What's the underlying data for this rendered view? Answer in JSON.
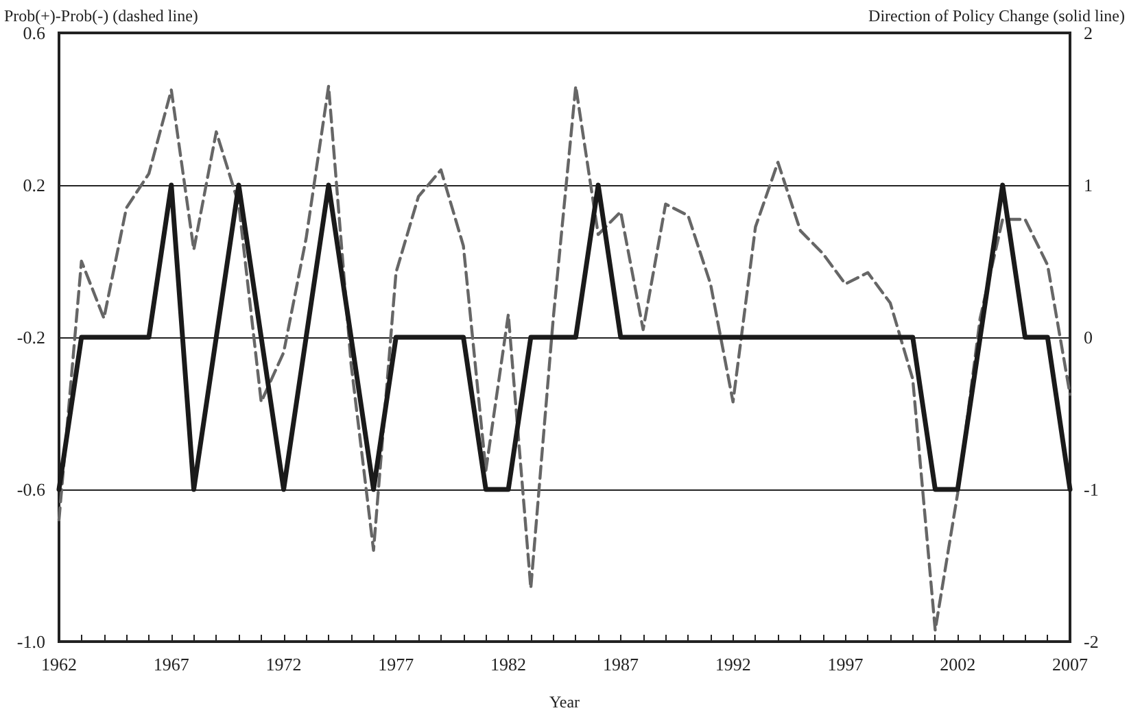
{
  "chart_data": {
    "type": "line",
    "xlabel": "Year",
    "ylabel": "Prob(+)-Prob(-) (dashed line)",
    "y2label": "Direction of Policy Change (solid line)",
    "x": [
      1962,
      1963,
      1964,
      1965,
      1966,
      1967,
      1968,
      1969,
      1970,
      1971,
      1972,
      1973,
      1974,
      1975,
      1976,
      1977,
      1978,
      1979,
      1980,
      1981,
      1982,
      1983,
      1984,
      1985,
      1986,
      1987,
      1988,
      1989,
      1990,
      1991,
      1992,
      1993,
      1994,
      1995,
      1996,
      1997,
      1998,
      1999,
      2000,
      2001,
      2002,
      2003,
      2004,
      2005,
      2006,
      2007
    ],
    "series": [
      {
        "color": "#666666",
        "line_style": "dashed",
        "values": [
          -0.68,
          0.0,
          -0.15,
          0.14,
          0.23,
          0.45,
          0.03,
          0.34,
          0.15,
          -0.37,
          -0.24,
          0.06,
          0.46,
          -0.27,
          -0.76,
          -0.03,
          0.17,
          0.24,
          0.04,
          -0.55,
          -0.14,
          -0.86,
          -0.15,
          0.46,
          0.07,
          0.13,
          -0.18,
          0.15,
          0.12,
          -0.06,
          -0.37,
          0.09,
          0.26,
          0.08,
          0.02,
          -0.06,
          -0.03,
          -0.11,
          -0.31,
          -0.97,
          -0.61,
          -0.15,
          0.11,
          0.11,
          -0.01,
          -0.35
        ]
      },
      {
        "color": "#1a1a1a",
        "line_style": "solid",
        "axis": "y2",
        "values": [
          -1,
          0,
          0,
          0,
          0,
          1,
          -1,
          0,
          1,
          0,
          -1,
          0,
          1,
          0,
          -1,
          0,
          0,
          0,
          0,
          -1,
          -1,
          0,
          0,
          0,
          1,
          0,
          0,
          0,
          0,
          0,
          0,
          0,
          0,
          0,
          0,
          0,
          0,
          0,
          0,
          -1,
          -1,
          0,
          1,
          0,
          0,
          -1
        ]
      }
    ],
    "xlim": [
      1962,
      2007
    ],
    "xticks": [
      1962,
      {
        "value": 1963,
        "label": null
      },
      {
        "value": 1964,
        "label": null
      },
      {
        "value": 1965,
        "label": null
      },
      {
        "value": 1966,
        "label": null
      },
      1967,
      {
        "value": 1968,
        "label": null
      },
      {
        "value": 1969,
        "label": null
      },
      {
        "value": 1970,
        "label": null
      },
      {
        "value": 1971,
        "label": null
      },
      1972,
      {
        "value": 1973,
        "label": null
      },
      {
        "value": 1974,
        "label": null
      },
      {
        "value": 1975,
        "label": null
      },
      {
        "value": 1976,
        "label": null
      },
      1977,
      {
        "value": 1978,
        "label": null
      },
      {
        "value": 1979,
        "label": null
      },
      {
        "value": 1980,
        "label": null
      },
      {
        "value": 1981,
        "label": null
      },
      1982,
      {
        "value": 1983,
        "label": null
      },
      {
        "value": 1984,
        "label": null
      },
      {
        "value": 1985,
        "label": null
      },
      {
        "value": 1986,
        "label": null
      },
      1987,
      {
        "value": 1988,
        "label": null
      },
      {
        "value": 1989,
        "label": null
      },
      {
        "value": 1990,
        "label": null
      },
      {
        "value": 1991,
        "label": null
      },
      1992,
      {
        "value": 1993,
        "label": null
      },
      {
        "value": 1994,
        "label": null
      },
      {
        "value": 1995,
        "label": null
      },
      {
        "value": 1996,
        "label": null
      },
      1997,
      {
        "value": 1998,
        "label": null
      },
      {
        "value": 1999,
        "label": null
      },
      {
        "value": 2000,
        "label": null
      },
      {
        "value": 2001,
        "label": null
      },
      2002,
      {
        "value": 2003,
        "label": null
      },
      {
        "value": 2004,
        "label": null
      },
      {
        "value": 2005,
        "label": null
      },
      {
        "value": 2006,
        "label": null
      },
      2007
    ],
    "ylim": [
      -1.0,
      0.6
    ],
    "yticks": [
      {
        "value": -1.0,
        "label": "-1.0"
      },
      -0.6,
      -0.2,
      0.2,
      0.6
    ],
    "y2lim": [
      -2,
      2
    ],
    "y2ticks": [
      -2,
      -1,
      0,
      1,
      2
    ],
    "grid": "y",
    "marker": "none"
  }
}
